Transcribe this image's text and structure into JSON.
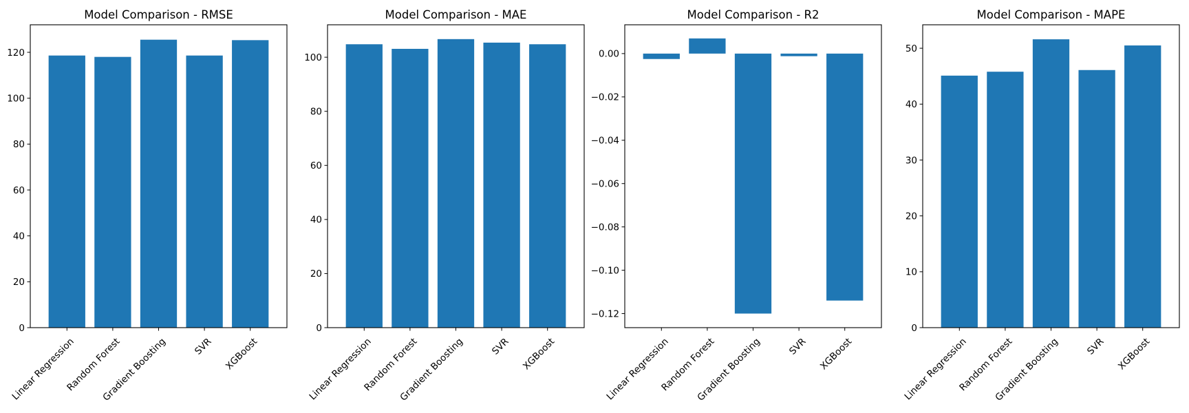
{
  "figure": {
    "color_bar": "#1f77b4"
  },
  "chart_data": [
    {
      "type": "bar",
      "title": "Model Comparison - RMSE",
      "categories": [
        "Linear Regression",
        "Random Forest",
        "Gradient Boosting",
        "SVR",
        "XGBoost"
      ],
      "values": [
        118.6,
        118.0,
        125.5,
        118.6,
        125.3
      ],
      "ylim": [
        0,
        132
      ],
      "yticks": [
        0,
        20,
        40,
        60,
        80,
        100,
        120
      ],
      "ytick_labels": [
        "0",
        "20",
        "40",
        "60",
        "80",
        "100",
        "120"
      ],
      "xlabel": "",
      "ylabel": "",
      "grid": false
    },
    {
      "type": "bar",
      "title": "Model Comparison - MAE",
      "categories": [
        "Linear Regression",
        "Random Forest",
        "Gradient Boosting",
        "SVR",
        "XGBoost"
      ],
      "values": [
        104.8,
        103.1,
        106.7,
        105.4,
        104.8
      ],
      "ylim": [
        0,
        112
      ],
      "yticks": [
        0,
        20,
        40,
        60,
        80,
        100
      ],
      "ytick_labels": [
        "0",
        "20",
        "40",
        "60",
        "80",
        "100"
      ],
      "xlabel": "",
      "ylabel": "",
      "grid": false
    },
    {
      "type": "bar",
      "title": "Model Comparison - R2",
      "categories": [
        "Linear Regression",
        "Random Forest",
        "Gradient Boosting",
        "SVR",
        "XGBoost"
      ],
      "values": [
        -0.0025,
        0.007,
        -0.12,
        -0.0012,
        -0.114
      ],
      "ylim": [
        -0.1265,
        0.0133
      ],
      "yticks": [
        0.0,
        -0.02,
        -0.04,
        -0.06,
        -0.08,
        -0.1,
        -0.12
      ],
      "ytick_labels": [
        "0.00",
        "−0.02",
        "−0.04",
        "−0.06",
        "−0.08",
        "−0.10",
        "−0.12"
      ],
      "xlabel": "",
      "ylabel": "",
      "grid": false
    },
    {
      "type": "bar",
      "title": "Model Comparison - MAPE",
      "categories": [
        "Linear Regression",
        "Random Forest",
        "Gradient Boosting",
        "SVR",
        "XGBoost"
      ],
      "values": [
        45.1,
        45.8,
        51.6,
        46.1,
        50.5
      ],
      "ylim": [
        0,
        54.2
      ],
      "yticks": [
        0,
        10,
        20,
        30,
        40,
        50
      ],
      "ytick_labels": [
        "0",
        "10",
        "20",
        "30",
        "40",
        "50"
      ],
      "xlabel": "",
      "ylabel": "",
      "grid": false
    }
  ]
}
